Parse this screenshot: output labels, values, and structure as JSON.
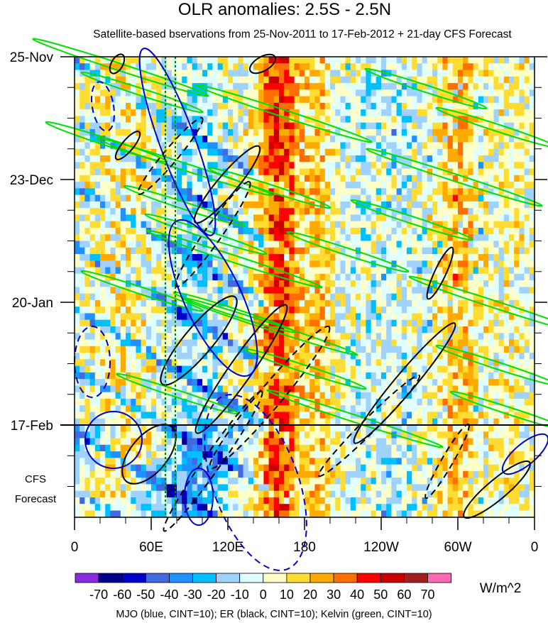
{
  "chart_data": {
    "type": "heatmap",
    "title": "OLR anomalies: 2.5S - 2.5N",
    "subtitle": "Satellite-based bservations from 25-Nov-2011 to 17-Feb-2012 + 21-day CFS Forecast",
    "x_ticks": [
      "0",
      "60E",
      "120E",
      "180",
      "120W",
      "60W",
      "0"
    ],
    "y_ticks": [
      "25-Nov",
      "23-Dec",
      "20-Jan",
      "17-Feb"
    ],
    "forecast_label": [
      "CFS",
      "Forecast"
    ],
    "xlim_deg_east": [
      0,
      360
    ],
    "ylim_days": [
      0,
      105
    ],
    "observation_end_day": 84,
    "colorbar": {
      "levels": [
        -70,
        -60,
        -50,
        -40,
        -30,
        -20,
        -10,
        0,
        10,
        20,
        30,
        40,
        50,
        60,
        70
      ],
      "labels": [
        "-70",
        "-60",
        "-50",
        "-40",
        "-30",
        "-20",
        "-10",
        "0",
        "10",
        "20",
        "30",
        "40",
        "50",
        "60",
        "70"
      ],
      "colors": [
        "#8a2be2",
        "#00008b",
        "#0000cd",
        "#4169e1",
        "#1e90ff",
        "#00bfff",
        "#a0d2ff",
        "#e0ffff",
        "#ffffc8",
        "#ffdc32",
        "#ffaa00",
        "#ff6e00",
        "#ff0000",
        "#c80000",
        "#a02020",
        "#ff69b4"
      ],
      "units": "W/m^2"
    },
    "contour_legend": "MJO (blue, CINT=10); ER (black, CINT=10); Kelvin (green, CINT=10)",
    "series_colors": {
      "mjo": "#0000cd",
      "er": "#000000",
      "kelvin": "#00e000"
    }
  }
}
